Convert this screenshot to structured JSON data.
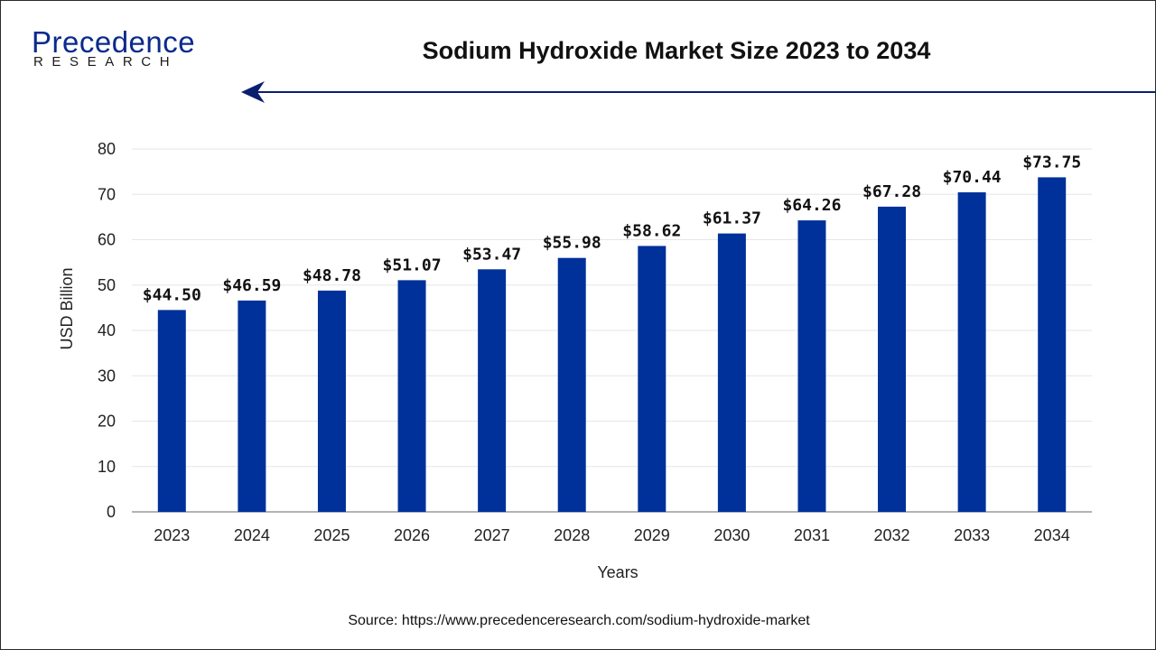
{
  "brand": {
    "name": "Precedence",
    "sub": "RESEARCH"
  },
  "colors": {
    "bar": "#00309a",
    "accent": "#0a1f6e",
    "grid": "#e6e6e6",
    "axis": "#9a9a9a"
  },
  "source": "Source: https://www.precedenceresearch.com/sodium-hydroxide-market",
  "chart_data": {
    "type": "bar",
    "title": "Sodium Hydroxide Market Size 2023 to 2034",
    "xlabel": "Years",
    "ylabel": "USD Billion",
    "ylim": [
      0,
      80
    ],
    "yticks": [
      0,
      10,
      20,
      30,
      40,
      50,
      60,
      70,
      80
    ],
    "grid": true,
    "categories": [
      "2023",
      "2024",
      "2025",
      "2026",
      "2027",
      "2028",
      "2029",
      "2030",
      "2031",
      "2032",
      "2033",
      "2034"
    ],
    "values": [
      44.5,
      46.59,
      48.78,
      51.07,
      53.47,
      55.98,
      58.62,
      61.37,
      64.26,
      67.28,
      70.44,
      73.75
    ],
    "data_labels": [
      "$44.50",
      "$46.59",
      "$48.78",
      "$51.07",
      "$53.47",
      "$55.98",
      "$58.62",
      "$61.37",
      "$64.26",
      "$67.28",
      "$70.44",
      "$73.75"
    ]
  }
}
